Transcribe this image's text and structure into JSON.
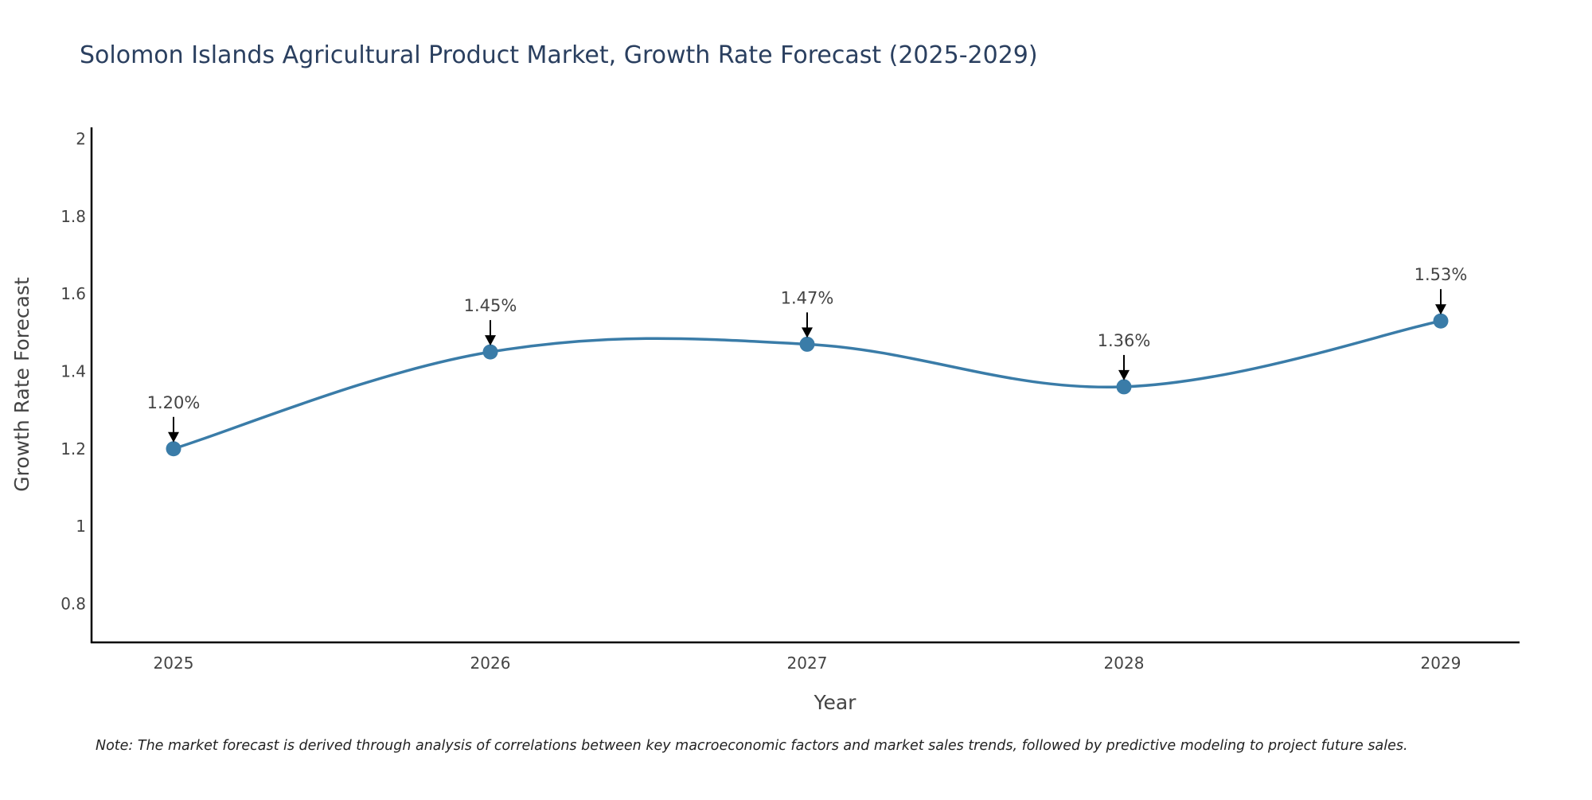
{
  "chart_data": {
    "type": "line",
    "title": "Solomon Islands Agricultural Product Market, Growth Rate Forecast (2025-2029)",
    "xlabel": "Year",
    "ylabel": "Growth Rate Forecast",
    "x": [
      "2025",
      "2026",
      "2027",
      "2028",
      "2029"
    ],
    "series": [
      {
        "name": "Growth Rate Forecast",
        "values": [
          1.2,
          1.45,
          1.47,
          1.36,
          1.53
        ]
      }
    ],
    "data_labels": [
      "1.20%",
      "1.45%",
      "1.47%",
      "1.36%",
      "1.53%"
    ],
    "ylim": [
      0.7,
      2.03
    ],
    "yticks": [
      0.8,
      1,
      1.2,
      1.4,
      1.6,
      1.8,
      2
    ],
    "ytick_labels": [
      "0.8",
      "1",
      "1.2",
      "1.4",
      "1.6",
      "1.8",
      "2"
    ],
    "line_shape": "spline",
    "grid": false,
    "legend": "none",
    "note": "Note: The market forecast is derived through analysis of correlations between key macroeconomic factors and market sales trends, followed by predictive modeling to project future sales.",
    "colors": {
      "line": "#3a7ca8",
      "marker": "#3a7ca8",
      "axis": "#000000",
      "text": "#444444",
      "title": "#2a3f5f"
    }
  }
}
